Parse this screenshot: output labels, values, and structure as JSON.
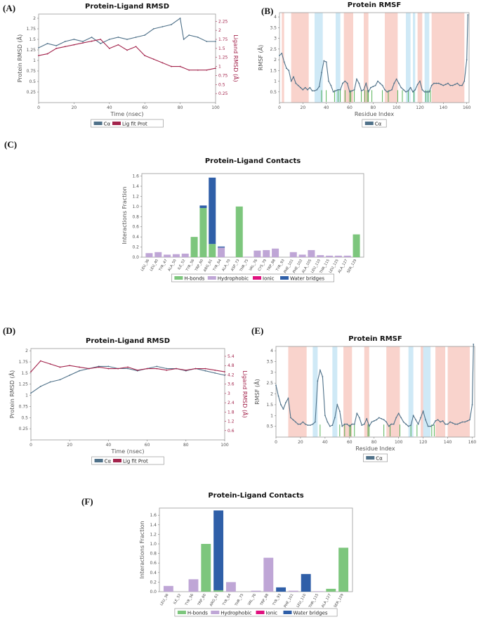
{
  "panel_labels": [
    "(A)",
    "(B)",
    "(C)",
    "(D)",
    "(E)",
    "(F)"
  ],
  "colors": {
    "protein": "#4f7189",
    "ligand": "#a3244c",
    "hbond": "#7dc67d",
    "hydrophobic": "#bfa6d6",
    "ionic": "#e0117f",
    "water": "#2f5fa8",
    "helix": "#f9d3cc",
    "strand": "#cfe9f6",
    "contact_line": "#2ea02e"
  },
  "chart_data": [
    {
      "id": "A",
      "type": "line",
      "title": "Protein-Ligand RMSD",
      "xlabel": "Time (nsec)",
      "ylabel": "Protein RMSD (Å)",
      "ylabel_right": "Ligand RMSD (Å)",
      "xlim": [
        0,
        100
      ],
      "ylim": [
        0,
        2.1
      ],
      "ylim_right": [
        0,
        2.45
      ],
      "xticks": [
        0,
        20,
        40,
        60,
        80,
        100
      ],
      "yticks": [
        0.25,
        0.5,
        0.75,
        1.0,
        1.25,
        1.5,
        1.75,
        2.0
      ],
      "yticks_right": [
        0.25,
        0.5,
        0.75,
        1.0,
        1.25,
        1.5,
        1.75,
        2.0,
        2.25
      ],
      "legend": [
        "Cα",
        "Lig fit Prot"
      ],
      "series": [
        {
          "name": "Cα",
          "axis": "left",
          "x": [
            0,
            5,
            10,
            15,
            20,
            25,
            30,
            35,
            40,
            45,
            50,
            55,
            60,
            65,
            70,
            75,
            80,
            82,
            85,
            90,
            95,
            100
          ],
          "y": [
            1.3,
            1.4,
            1.35,
            1.45,
            1.5,
            1.45,
            1.55,
            1.4,
            1.5,
            1.55,
            1.5,
            1.55,
            1.6,
            1.75,
            1.8,
            1.85,
            2.0,
            1.5,
            1.6,
            1.55,
            1.45,
            1.45
          ]
        },
        {
          "name": "Lig fit Prot",
          "axis": "right",
          "x": [
            0,
            5,
            10,
            15,
            20,
            25,
            30,
            35,
            40,
            45,
            50,
            55,
            60,
            65,
            70,
            75,
            80,
            85,
            90,
            95,
            100
          ],
          "y": [
            1.3,
            1.35,
            1.5,
            1.55,
            1.6,
            1.65,
            1.7,
            1.75,
            1.5,
            1.6,
            1.45,
            1.55,
            1.3,
            1.2,
            1.1,
            1.0,
            1.0,
            0.9,
            0.9,
            0.9,
            0.95
          ]
        }
      ]
    },
    {
      "id": "B",
      "type": "line",
      "title": "Protein RMSF",
      "xlabel": "Residue Index",
      "ylabel": "RMSF (Å)",
      "xlim": [
        0,
        162
      ],
      "ylim": [
        0,
        4.2
      ],
      "xticks": [
        0,
        20,
        40,
        60,
        80,
        100,
        120,
        140,
        160
      ],
      "yticks": [
        0.5,
        1.0,
        1.5,
        2.0,
        2.5,
        3.0,
        3.5,
        4.0
      ],
      "legend": [
        "Cα"
      ],
      "helix_regions": [
        [
          2,
          4
        ],
        [
          10,
          25
        ],
        [
          55,
          63
        ],
        [
          72,
          76
        ],
        [
          90,
          101
        ],
        [
          118,
          122
        ],
        [
          130,
          158
        ]
      ],
      "strand_regions": [
        [
          30,
          37
        ],
        [
          48,
          52
        ],
        [
          108,
          112
        ],
        [
          114,
          116
        ],
        [
          124,
          128
        ]
      ],
      "contact_residues": [
        36,
        40,
        47,
        50,
        52,
        56,
        60,
        61,
        64,
        70,
        73,
        75,
        76,
        79,
        88,
        93,
        101,
        105,
        110,
        115,
        125,
        127,
        129
      ],
      "series": [
        {
          "name": "Cα",
          "x": [
            0,
            2,
            4,
            6,
            8,
            10,
            12,
            14,
            16,
            18,
            20,
            22,
            24,
            26,
            28,
            30,
            32,
            34,
            36,
            38,
            40,
            42,
            44,
            46,
            48,
            50,
            52,
            54,
            56,
            58,
            60,
            62,
            64,
            66,
            68,
            70,
            72,
            74,
            76,
            78,
            80,
            82,
            84,
            86,
            88,
            90,
            92,
            94,
            96,
            98,
            100,
            102,
            104,
            106,
            108,
            110,
            112,
            114,
            116,
            118,
            120,
            122,
            124,
            126,
            128,
            130,
            132,
            134,
            136,
            138,
            140,
            142,
            144,
            146,
            148,
            150,
            152,
            154,
            156,
            158,
            160,
            161
          ],
          "y": [
            2.2,
            2.3,
            1.9,
            1.6,
            1.5,
            1.0,
            1.2,
            0.9,
            0.8,
            0.7,
            0.6,
            0.7,
            0.6,
            0.7,
            0.55,
            0.55,
            0.6,
            0.75,
            1.4,
            1.95,
            1.9,
            1.0,
            0.8,
            0.5,
            0.55,
            0.6,
            0.6,
            0.9,
            1.0,
            0.9,
            0.5,
            0.55,
            0.6,
            1.1,
            0.9,
            0.55,
            0.6,
            0.9,
            0.5,
            0.7,
            0.75,
            0.8,
            1.0,
            0.9,
            0.8,
            0.6,
            0.5,
            0.55,
            0.6,
            0.9,
            1.1,
            0.9,
            0.7,
            0.6,
            0.5,
            0.55,
            0.7,
            0.5,
            0.6,
            0.85,
            1.0,
            0.6,
            0.5,
            0.5,
            0.5,
            0.8,
            0.9,
            0.9,
            0.9,
            0.85,
            0.8,
            0.85,
            0.9,
            0.8,
            0.8,
            0.85,
            0.9,
            0.8,
            0.8,
            1.0,
            2.0,
            4.1
          ]
        }
      ]
    },
    {
      "id": "C",
      "type": "bar",
      "title": "Protein-Ligand Contacts",
      "ylabel": "Interactions Fraction",
      "ylim": [
        0,
        1.65
      ],
      "yticks": [
        0.0,
        0.2,
        0.4,
        0.6,
        0.8,
        1.0,
        1.2,
        1.4,
        1.6
      ],
      "categories": [
        "LEU_36",
        "LEU_40",
        "TYR_47",
        "ALA_50",
        "ILE_52",
        "TYR_56",
        "TRP_60",
        "ARG_61",
        "TYR_64",
        "ALA_70",
        "ASP_73",
        "THR_75",
        "VAL_76",
        "CYS_79",
        "TRP_88",
        "TYR_93",
        "PHE_101",
        "PHE_102",
        "ALA_105",
        "LEU_110",
        "THR_115",
        "LEU_125",
        "ALA_127",
        "SER_129"
      ],
      "legend": [
        "H-bonds",
        "Hydrophobic",
        "Ionic",
        "Water bridges"
      ],
      "series": [
        {
          "name": "H-bonds",
          "values": [
            0,
            0,
            0,
            0,
            0,
            0.4,
            0.97,
            0.26,
            0,
            0,
            1.0,
            0,
            0,
            0,
            0,
            0,
            0,
            0,
            0,
            0,
            0,
            0,
            0,
            0.45
          ]
        },
        {
          "name": "Hydrophobic",
          "values": [
            0.08,
            0.1,
            0.05,
            0.06,
            0.07,
            0,
            0,
            0,
            0.19,
            0,
            0,
            0.01,
            0.13,
            0.14,
            0.17,
            0,
            0.1,
            0.05,
            0.14,
            0.04,
            0.03,
            0.03,
            0.03,
            0
          ]
        },
        {
          "name": "Ionic",
          "values": [
            0,
            0,
            0,
            0,
            0,
            0,
            0,
            0,
            0,
            0,
            0,
            0,
            0,
            0,
            0,
            0,
            0,
            0,
            0,
            0,
            0,
            0,
            0,
            0
          ]
        },
        {
          "name": "Water bridges",
          "values": [
            0,
            0,
            0,
            0,
            0,
            0,
            0.05,
            1.31,
            0.02,
            0,
            0,
            0,
            0,
            0,
            0,
            0,
            0,
            0,
            0,
            0,
            0,
            0,
            0,
            0
          ]
        }
      ]
    },
    {
      "id": "D",
      "type": "line",
      "title": "Protein-Ligand RMSD",
      "xlabel": "Time (nsec)",
      "ylabel": "Protein RMSD (Å)",
      "ylabel_right": "Ligand RMSD (Å)",
      "xlim": [
        0,
        100
      ],
      "ylim": [
        0,
        2.05
      ],
      "ylim_right": [
        0,
        5.9
      ],
      "xticks": [
        0,
        20,
        40,
        60,
        80,
        100
      ],
      "yticks": [
        0.25,
        0.5,
        0.75,
        1.0,
        1.25,
        1.5,
        1.75,
        2.0
      ],
      "yticks_right": [
        0.6,
        1.2,
        1.8,
        2.4,
        3.0,
        3.6,
        4.2,
        4.8,
        5.4
      ],
      "legend": [
        "Cα",
        "Lig fit Prot"
      ],
      "series": [
        {
          "name": "Cα",
          "axis": "left",
          "x": [
            0,
            5,
            10,
            15,
            20,
            25,
            30,
            35,
            40,
            45,
            50,
            55,
            60,
            65,
            70,
            75,
            80,
            85,
            90,
            95,
            100
          ],
          "y": [
            1.05,
            1.2,
            1.3,
            1.35,
            1.45,
            1.55,
            1.6,
            1.65,
            1.65,
            1.6,
            1.6,
            1.55,
            1.6,
            1.65,
            1.6,
            1.6,
            1.55,
            1.6,
            1.55,
            1.5,
            1.45
          ]
        },
        {
          "name": "Lig fit Prot",
          "axis": "right",
          "x": [
            0,
            5,
            10,
            15,
            20,
            25,
            30,
            35,
            40,
            45,
            50,
            55,
            60,
            65,
            70,
            75,
            80,
            85,
            90,
            95,
            100
          ],
          "y": [
            4.4,
            5.1,
            4.9,
            4.7,
            4.8,
            4.7,
            4.6,
            4.7,
            4.6,
            4.6,
            4.7,
            4.5,
            4.6,
            4.6,
            4.5,
            4.6,
            4.5,
            4.6,
            4.6,
            4.5,
            4.4
          ]
        }
      ]
    },
    {
      "id": "E",
      "type": "line",
      "title": "Protein RMSF",
      "xlabel": "Residue Index",
      "ylabel": "RMSF (Å)",
      "xlim": [
        0,
        162
      ],
      "ylim": [
        0,
        4.2
      ],
      "xticks": [
        0,
        20,
        40,
        60,
        80,
        100,
        120,
        140,
        160
      ],
      "yticks": [
        0.5,
        1.0,
        1.5,
        2.0,
        2.5,
        3.0,
        3.5,
        4.0
      ],
      "legend": [
        "Cα"
      ],
      "helix_regions": [
        [
          10,
          25
        ],
        [
          55,
          62
        ],
        [
          72,
          76
        ],
        [
          90,
          101
        ],
        [
          118,
          122
        ],
        [
          130,
          138
        ],
        [
          140,
          158
        ]
      ],
      "strand_regions": [
        [
          30,
          34
        ],
        [
          46,
          50
        ],
        [
          108,
          112
        ],
        [
          120,
          126
        ]
      ],
      "contact_residues": [
        36,
        52,
        56,
        60,
        61,
        64,
        75,
        76,
        88,
        93,
        101,
        110,
        115,
        127,
        129
      ],
      "series": [
        {
          "name": "Cα",
          "x": [
            0,
            2,
            4,
            6,
            8,
            10,
            12,
            14,
            16,
            18,
            20,
            22,
            24,
            26,
            28,
            30,
            32,
            34,
            36,
            38,
            40,
            42,
            44,
            46,
            48,
            50,
            52,
            54,
            56,
            58,
            60,
            62,
            64,
            66,
            68,
            70,
            72,
            74,
            76,
            78,
            80,
            82,
            84,
            86,
            88,
            90,
            92,
            94,
            96,
            98,
            100,
            102,
            104,
            106,
            108,
            110,
            112,
            114,
            116,
            118,
            120,
            122,
            124,
            126,
            128,
            130,
            132,
            134,
            136,
            138,
            140,
            142,
            144,
            146,
            148,
            150,
            152,
            154,
            156,
            158,
            160,
            161
          ],
          "y": [
            2.4,
            1.9,
            1.5,
            1.3,
            1.6,
            1.8,
            0.9,
            0.8,
            0.7,
            0.6,
            0.6,
            0.7,
            0.6,
            0.55,
            0.55,
            0.6,
            0.7,
            2.6,
            3.1,
            2.8,
            1.0,
            0.7,
            0.5,
            0.55,
            0.9,
            1.5,
            1.2,
            0.5,
            0.6,
            0.6,
            0.5,
            0.6,
            0.6,
            1.1,
            0.9,
            0.55,
            0.6,
            0.85,
            0.5,
            0.7,
            0.75,
            0.8,
            0.9,
            0.85,
            0.8,
            0.7,
            0.5,
            0.6,
            0.6,
            0.9,
            1.1,
            0.9,
            0.7,
            0.6,
            0.5,
            0.55,
            1.0,
            0.8,
            0.6,
            0.9,
            1.2,
            0.8,
            0.5,
            0.5,
            0.55,
            0.75,
            0.8,
            0.7,
            0.75,
            0.6,
            0.6,
            0.7,
            0.65,
            0.6,
            0.6,
            0.65,
            0.7,
            0.7,
            0.75,
            0.8,
            1.5,
            4.3
          ]
        }
      ]
    },
    {
      "id": "F",
      "type": "bar",
      "title": "Protein-Ligand Contacts",
      "ylabel": "Interactions Fraction",
      "ylim": [
        0,
        1.75
      ],
      "yticks": [
        0.0,
        0.2,
        0.4,
        0.6,
        0.8,
        1.0,
        1.2,
        1.4,
        1.6
      ],
      "categories": [
        "LEU_36",
        "ILE_52",
        "TYR_56",
        "TRP_60",
        "ARG_61",
        "TYR_64",
        "THR_75",
        "VAL_76",
        "TRP_88",
        "TYR_93",
        "PHE_101",
        "LEU_110",
        "THR_115",
        "ALA_127",
        "SER_129"
      ],
      "legend": [
        "H-bonds",
        "Hydrophobic",
        "Ionic",
        "Water bridges"
      ],
      "series": [
        {
          "name": "H-bonds",
          "values": [
            0,
            0,
            0,
            1.0,
            0.03,
            0,
            0,
            0,
            0,
            0,
            0,
            0,
            0,
            0.06,
            0.92
          ]
        },
        {
          "name": "Hydrophobic",
          "values": [
            0.12,
            0,
            0.26,
            0,
            0,
            0.2,
            0,
            0.02,
            0.71,
            0,
            0.02,
            0,
            0.01,
            0,
            0
          ]
        },
        {
          "name": "Ionic",
          "values": [
            0,
            0,
            0,
            0,
            0,
            0,
            0,
            0,
            0,
            0,
            0,
            0,
            0,
            0,
            0
          ]
        },
        {
          "name": "Water bridges",
          "values": [
            0,
            0,
            0,
            0,
            1.67,
            0,
            0,
            0,
            0,
            0.09,
            0,
            0.37,
            0,
            0,
            0
          ]
        }
      ]
    }
  ]
}
